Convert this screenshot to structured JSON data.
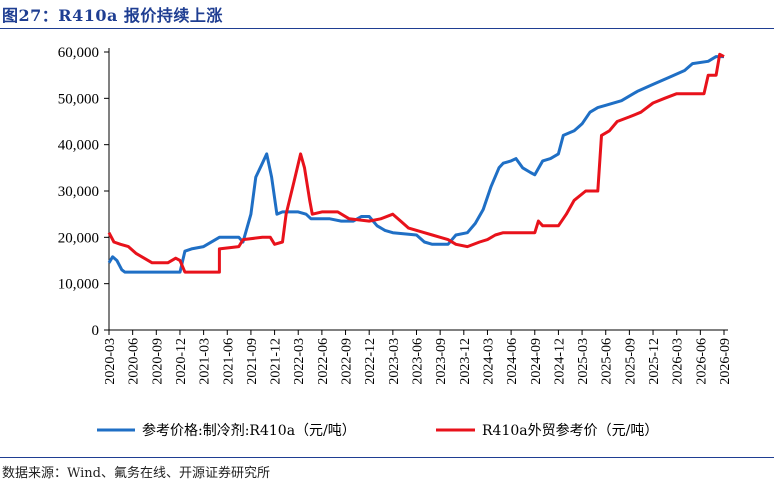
{
  "title": "图27：R410a 报价持续上涨",
  "source": "数据来源：Wind、氟务在线、开源证券研究所",
  "chart_data": {
    "type": "line",
    "ylim": [
      0,
      60000
    ],
    "yticks": [
      "0",
      "10,000",
      "20,000",
      "30,000",
      "40,000",
      "50,000",
      "60,000"
    ],
    "ytick_values": [
      0,
      10000,
      20000,
      30000,
      40000,
      50000,
      60000
    ],
    "xtick_labels": [
      "2020-03",
      "2020-06",
      "2020-09",
      "2020-12",
      "2021-03",
      "2021-06",
      "2021-09",
      "2021-12",
      "2022-03",
      "2022-06",
      "2022-09",
      "2022-12",
      "2023-03",
      "2023-06",
      "2023-09",
      "2023-12",
      "2024-03",
      "2024-06",
      "2024-09",
      "2024-12",
      "2025-03",
      "2025-06",
      "2025-09",
      "2025-12",
      "2026-03",
      "2026-06",
      "2026-09"
    ],
    "grid": false,
    "legend_position": "bottom",
    "series": [
      {
        "name": "参考价格:制冷剂:R410a（元/吨）",
        "color": "#1f6fc5",
        "points": [
          [
            "2020-03-01",
            14500
          ],
          [
            "2020-03-15",
            15800
          ],
          [
            "2020-04-01",
            15000
          ],
          [
            "2020-04-20",
            13000
          ],
          [
            "2020-05-01",
            12500
          ],
          [
            "2020-12-01",
            12500
          ],
          [
            "2020-12-20",
            17000
          ],
          [
            "2021-01-15",
            17500
          ],
          [
            "2021-03-01",
            18000
          ],
          [
            "2021-05-01",
            20000
          ],
          [
            "2021-07-15",
            20000
          ],
          [
            "2021-08-01",
            19000
          ],
          [
            "2021-09-01",
            25000
          ],
          [
            "2021-09-20",
            33000
          ],
          [
            "2021-10-15",
            36000
          ],
          [
            "2021-11-01",
            38000
          ],
          [
            "2021-11-20",
            33000
          ],
          [
            "2021-12-10",
            25000
          ],
          [
            "2022-01-01",
            25500
          ],
          [
            "2022-03-01",
            25500
          ],
          [
            "2022-04-01",
            25000
          ],
          [
            "2022-04-20",
            24000
          ],
          [
            "2022-07-01",
            24000
          ],
          [
            "2022-08-15",
            23500
          ],
          [
            "2022-10-01",
            23500
          ],
          [
            "2022-11-01",
            24500
          ],
          [
            "2022-12-01",
            24500
          ],
          [
            "2023-01-01",
            22500
          ],
          [
            "2023-02-01",
            21500
          ],
          [
            "2023-03-01",
            21000
          ],
          [
            "2023-06-01",
            20500
          ],
          [
            "2023-07-01",
            19000
          ],
          [
            "2023-08-01",
            18500
          ],
          [
            "2023-10-01",
            18500
          ],
          [
            "2023-11-01",
            20500
          ],
          [
            "2023-12-15",
            21000
          ],
          [
            "2024-01-15",
            23000
          ],
          [
            "2024-02-15",
            26000
          ],
          [
            "2024-03-15",
            31000
          ],
          [
            "2024-04-15",
            35000
          ],
          [
            "2024-05-01",
            36000
          ],
          [
            "2024-06-01",
            36500
          ],
          [
            "2024-06-20",
            37000
          ],
          [
            "2024-07-15",
            35000
          ],
          [
            "2024-08-15",
            34000
          ],
          [
            "2024-09-01",
            33500
          ],
          [
            "2024-10-01",
            36500
          ],
          [
            "2024-11-01",
            37000
          ],
          [
            "2024-12-01",
            38000
          ],
          [
            "2024-12-20",
            42000
          ],
          [
            "2025-02-01",
            43000
          ],
          [
            "2025-03-01",
            44500
          ],
          [
            "2025-04-01",
            47000
          ],
          [
            "2025-05-01",
            48000
          ],
          [
            "2025-06-01",
            48500
          ],
          [
            "2025-08-01",
            49500
          ],
          [
            "2025-10-01",
            51500
          ],
          [
            "2025-12-01",
            53000
          ],
          [
            "2026-02-01",
            54500
          ],
          [
            "2026-04-01",
            56000
          ],
          [
            "2026-05-01",
            57500
          ],
          [
            "2026-07-01",
            58000
          ],
          [
            "2026-08-01",
            59000
          ],
          [
            "2026-09-01",
            59000
          ]
        ]
      },
      {
        "name": "R410a外贸参考价（元/吨）",
        "color": "#e8121b",
        "points": [
          [
            "2020-03-01",
            21000
          ],
          [
            "2020-03-20",
            19000
          ],
          [
            "2020-04-15",
            18500
          ],
          [
            "2020-05-15",
            18000
          ],
          [
            "2020-06-15",
            16500
          ],
          [
            "2020-07-15",
            15500
          ],
          [
            "2020-08-15",
            14500
          ],
          [
            "2020-10-15",
            14500
          ],
          [
            "2020-11-15",
            15500
          ],
          [
            "2020-12-01",
            15000
          ],
          [
            "2020-12-20",
            12500
          ],
          [
            "2021-05-01",
            12500
          ],
          [
            "2021-05-01",
            17500
          ],
          [
            "2021-07-15",
            18000
          ],
          [
            "2021-08-01",
            19500
          ],
          [
            "2021-10-15",
            20000
          ],
          [
            "2021-11-15",
            20000
          ],
          [
            "2021-12-01",
            18500
          ],
          [
            "2022-01-01",
            19000
          ],
          [
            "2022-01-15",
            25000
          ],
          [
            "2022-02-15",
            32000
          ],
          [
            "2022-03-10",
            38000
          ],
          [
            "2022-03-25",
            35000
          ],
          [
            "2022-04-15",
            28000
          ],
          [
            "2022-04-25",
            25000
          ],
          [
            "2022-06-01",
            25500
          ],
          [
            "2022-08-01",
            25500
          ],
          [
            "2022-09-15",
            24000
          ],
          [
            "2022-12-01",
            23500
          ],
          [
            "2023-01-15",
            24000
          ],
          [
            "2023-03-01",
            25000
          ],
          [
            "2023-04-01",
            23500
          ],
          [
            "2023-05-01",
            22000
          ],
          [
            "2023-07-01",
            21000
          ],
          [
            "2023-08-01",
            20500
          ],
          [
            "2023-09-01",
            20000
          ],
          [
            "2023-10-01",
            19500
          ],
          [
            "2023-11-01",
            18500
          ],
          [
            "2023-12-15",
            18000
          ],
          [
            "2024-02-01",
            19000
          ],
          [
            "2024-03-01",
            19500
          ],
          [
            "2024-04-01",
            20500
          ],
          [
            "2024-05-01",
            21000
          ],
          [
            "2024-09-01",
            21000
          ],
          [
            "2024-09-15",
            23500
          ],
          [
            "2024-10-01",
            22500
          ],
          [
            "2024-12-01",
            22500
          ],
          [
            "2025-01-01",
            25000
          ],
          [
            "2025-02-01",
            28000
          ],
          [
            "2025-03-15",
            30000
          ],
          [
            "2025-05-01",
            30000
          ],
          [
            "2025-05-15",
            42000
          ],
          [
            "2025-06-15",
            43000
          ],
          [
            "2025-07-15",
            45000
          ],
          [
            "2025-09-01",
            46000
          ],
          [
            "2025-10-15",
            47000
          ],
          [
            "2025-12-01",
            49000
          ],
          [
            "2026-01-15",
            50000
          ],
          [
            "2026-03-01",
            51000
          ],
          [
            "2026-06-15",
            51000
          ],
          [
            "2026-07-01",
            55000
          ],
          [
            "2026-08-01",
            55000
          ],
          [
            "2026-08-15",
            59500
          ],
          [
            "2026-09-01",
            59000
          ]
        ]
      }
    ]
  }
}
